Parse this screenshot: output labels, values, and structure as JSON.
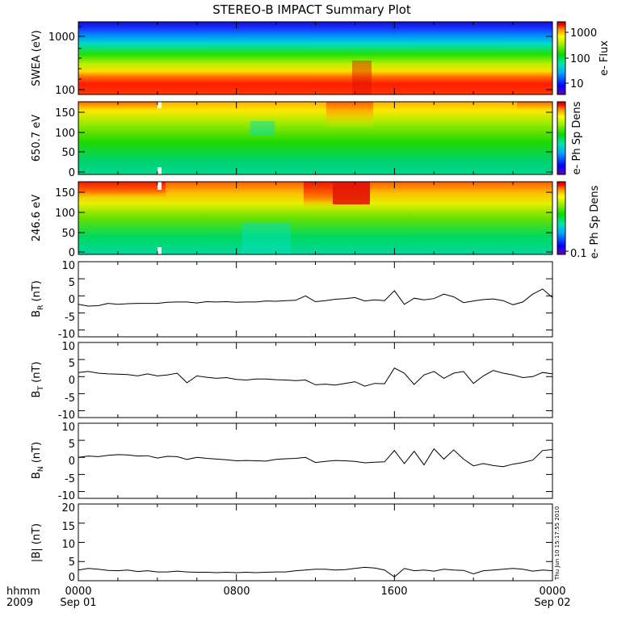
{
  "title": "STEREO-B IMPACT Summary Plot",
  "time_axis": {
    "row1_label": "hhmm",
    "row2_label": "2009",
    "ticks": [
      {
        "time": "0000",
        "date": "Sep 01"
      },
      {
        "time": "0800",
        "date": ""
      },
      {
        "time": "1600",
        "date": ""
      },
      {
        "time": "0000",
        "date": "Sep 02"
      }
    ]
  },
  "timestamp": "Thu Jun 10 15:17:55 2010",
  "colors": {
    "spectrogram_scale": [
      "#6a00b0",
      "#0000ff",
      "#00aaff",
      "#00e6b0",
      "#00dd00",
      "#aaee00",
      "#ffff00",
      "#ff8800",
      "#ff0000",
      "#cc0000"
    ]
  },
  "chart_data": [
    {
      "type": "heatmap",
      "panel": "swea",
      "ylabel": "SWEA (eV)",
      "yscale": "log",
      "yticks": [
        "1000",
        "100"
      ],
      "colorbar_label": "e- Flux",
      "colorbar_ticks": [
        "1000",
        "100",
        "10"
      ],
      "approx_levels_by_energy": [
        {
          "energy_eV": 2000,
          "level": "10"
        },
        {
          "energy_eV": 1000,
          "level": "30"
        },
        {
          "energy_eV": 500,
          "level": "200"
        },
        {
          "energy_eV": 250,
          "level": "700"
        },
        {
          "energy_eV": 150,
          "level": "2000"
        }
      ]
    },
    {
      "type": "heatmap",
      "panel": "pad_650",
      "ylabel": "650.7 eV",
      "ylim": [
        0,
        180
      ],
      "yticks": [
        "150",
        "100",
        "50",
        "0"
      ],
      "colorbar_label": "e- Ph Sp Dens"
    },
    {
      "type": "heatmap",
      "panel": "pad_246",
      "ylabel": "246.6 eV",
      "ylim": [
        0,
        180
      ],
      "yticks": [
        "150",
        "100",
        "50",
        "0"
      ],
      "colorbar_label": "e- Ph Sp Dens",
      "colorbar_ticks": [
        "0.1"
      ]
    },
    {
      "type": "line",
      "panel": "br",
      "ylabel_main": "B",
      "ylabel_sub": "R",
      "ylabel_tail": " (nT)",
      "ylim": [
        -12,
        10
      ],
      "yticks": [
        "10",
        "5",
        "0",
        "-5",
        "-10"
      ],
      "x": [
        0,
        0.5,
        1,
        1.5,
        2,
        2.5,
        3,
        3.5,
        4,
        4.5,
        5,
        5.5,
        6,
        6.5,
        7,
        7.5,
        8,
        8.5,
        9,
        9.5,
        10,
        10.5,
        11,
        11.5,
        12,
        12.5,
        13,
        13.5,
        14,
        14.5,
        15,
        15.5,
        16,
        16.5,
        17,
        17.5,
        18,
        18.5,
        19,
        19.5,
        20,
        20.5,
        21,
        21.5,
        22,
        22.5,
        23,
        23.5,
        24
      ],
      "values": [
        -2.5,
        -3,
        -2.9,
        -2.2,
        -2.5,
        -2.3,
        -2.2,
        -2.2,
        -2.2,
        -1.9,
        -1.8,
        -1.8,
        -2.1,
        -1.7,
        -1.8,
        -1.7,
        -1.9,
        -1.8,
        -1.8,
        -1.5,
        -1.6,
        -1.4,
        -1.3,
        0,
        -1.7,
        -1.4,
        -1,
        -0.8,
        -0.5,
        -1.5,
        -1.2,
        -1.4,
        1.5,
        -2.5,
        -0.7,
        -1.2,
        -0.8,
        0.5,
        -0.3,
        -2,
        -1.5,
        -1.1,
        -0.9,
        -1.4,
        -2.6,
        -1.8,
        0.5,
        2,
        -0.5
      ]
    },
    {
      "type": "line",
      "panel": "bt",
      "ylabel_main": "B",
      "ylabel_sub": "T",
      "ylabel_tail": " (nT)",
      "ylim": [
        -12,
        10
      ],
      "yticks": [
        "10",
        "5",
        "0",
        "-5",
        "-10"
      ],
      "x": [
        0,
        0.5,
        1,
        1.5,
        2,
        2.5,
        3,
        3.5,
        4,
        4.5,
        5,
        5.5,
        6,
        6.5,
        7,
        7.5,
        8,
        8.5,
        9,
        9.5,
        10,
        10.5,
        11,
        11.5,
        12,
        12.5,
        13,
        13.5,
        14,
        14.5,
        15,
        15.5,
        16,
        16.5,
        17,
        17.5,
        18,
        18.5,
        19,
        19.5,
        20,
        20.5,
        21,
        21.5,
        22,
        22.5,
        23,
        23.5,
        24
      ],
      "values": [
        1.2,
        1.5,
        1,
        0.8,
        0.7,
        0.6,
        0.2,
        0.8,
        0.2,
        0.5,
        1,
        -1.8,
        0.2,
        -0.2,
        -0.5,
        -0.3,
        -0.8,
        -1,
        -0.7,
        -0.7,
        -0.9,
        -1,
        -1.2,
        -1,
        -2.4,
        -2.2,
        -2.5,
        -2,
        -1.5,
        -2.8,
        -2,
        -2.1,
        2.5,
        1,
        -2.3,
        0.5,
        1.5,
        -0.5,
        1,
        1.5,
        -2,
        0.2,
        1.8,
        1,
        0.5,
        -0.3,
        0,
        1.2,
        0.8
      ]
    },
    {
      "type": "line",
      "panel": "bn",
      "ylabel_main": "B",
      "ylabel_sub": "N",
      "ylabel_tail": " (nT)",
      "ylim": [
        -12,
        10
      ],
      "yticks": [
        "10",
        "5",
        "0",
        "-5",
        "-10"
      ],
      "x": [
        0,
        0.5,
        1,
        1.5,
        2,
        2.5,
        3,
        3.5,
        4,
        4.5,
        5,
        5.5,
        6,
        6.5,
        7,
        7.5,
        8,
        8.5,
        9,
        9.5,
        10,
        10.5,
        11,
        11.5,
        12,
        12.5,
        13,
        13.5,
        14,
        14.5,
        15,
        15.5,
        16,
        16.5,
        17,
        17.5,
        18,
        18.5,
        19,
        19.5,
        20,
        20.5,
        21,
        21.5,
        22,
        22.5,
        23,
        23.5,
        24
      ],
      "values": [
        0,
        0.4,
        0.2,
        0.6,
        0.8,
        0.7,
        0.4,
        0.5,
        -0.2,
        0.3,
        0.2,
        -0.6,
        0,
        -0.3,
        -0.5,
        -0.7,
        -1,
        -0.9,
        -1,
        -1.1,
        -0.6,
        -0.4,
        -0.3,
        0,
        -1.5,
        -1.2,
        -0.9,
        -1,
        -1.2,
        -1.6,
        -1.4,
        -1.3,
        2,
        -1.8,
        1.8,
        -2.2,
        2.5,
        -0.5,
        2.2,
        -0.5,
        -2.5,
        -1.8,
        -2.4,
        -2.7,
        -2,
        -1.5,
        -0.8,
        2,
        2.3
      ]
    },
    {
      "type": "line",
      "panel": "bmag",
      "ylabel": "|B| (nT)",
      "ylim": [
        0,
        20
      ],
      "yticks": [
        "20",
        "15",
        "10",
        "5",
        "0"
      ],
      "x": [
        0,
        0.5,
        1,
        1.5,
        2,
        2.5,
        3,
        3.5,
        4,
        4.5,
        5,
        5.5,
        6,
        6.5,
        7,
        7.5,
        8,
        8.5,
        9,
        9.5,
        10,
        10.5,
        11,
        11.5,
        12,
        12.5,
        13,
        13.5,
        14,
        14.5,
        15,
        15.5,
        16,
        16.5,
        17,
        17.5,
        18,
        18.5,
        19,
        19.5,
        20,
        20.5,
        21,
        21.5,
        22,
        22.5,
        23,
        23.5,
        24
      ],
      "values": [
        2.8,
        3.2,
        3,
        2.7,
        2.6,
        2.8,
        2.4,
        2.6,
        2.3,
        2.3,
        2.5,
        2.3,
        2.2,
        2.2,
        2.1,
        2.2,
        2.1,
        2.2,
        2.1,
        2.2,
        2.3,
        2.3,
        2.6,
        2.8,
        3,
        3,
        2.8,
        2.9,
        3.2,
        3.5,
        3.3,
        2.8,
        1,
        3.2,
        2.6,
        2.8,
        2.5,
        3,
        2.8,
        2.7,
        1.8,
        2.6,
        2.8,
        3,
        3.2,
        3,
        2.5,
        2.8,
        2.6
      ]
    }
  ]
}
